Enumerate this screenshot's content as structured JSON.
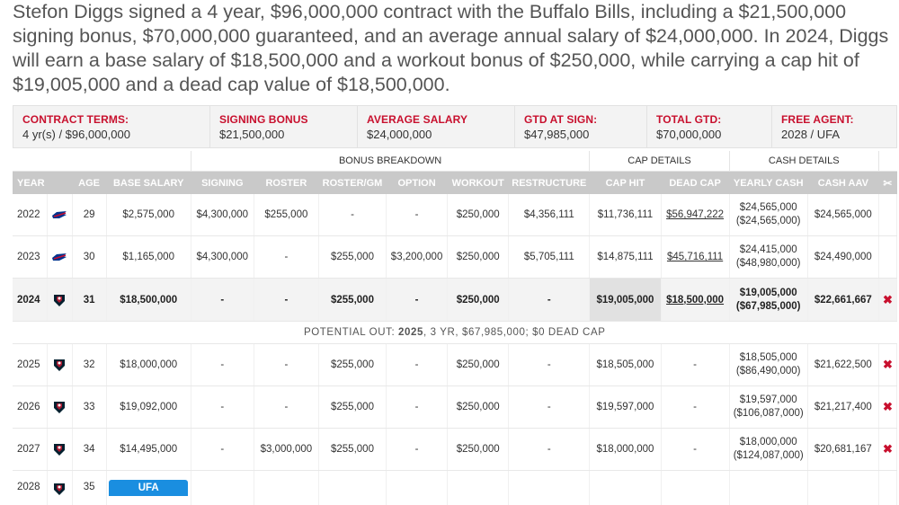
{
  "summary": "Stefon Diggs signed a 4 year, $96,000,000 contract with the Buffalo Bills, including a $21,500,000 signing bonus, $70,000,000 guaranteed, and an average annual salary of $24,000,000. In 2024, Diggs will earn a base salary of $18,500,000 and a workout bonus of $250,000, while carrying a cap hit of $19,005,000 and a dead cap value of $18,500,000.",
  "terms": [
    {
      "label": "CONTRACT TERMS:",
      "value": "4 yr(s) / $96,000,000"
    },
    {
      "label": "SIGNING BONUS",
      "value": "$21,500,000"
    },
    {
      "label": "AVERAGE SALARY",
      "value": "$24,000,000"
    },
    {
      "label": "GTD AT SIGN:",
      "value": "$47,985,000"
    },
    {
      "label": "TOTAL GTD:",
      "value": "$70,000,000"
    },
    {
      "label": "FREE AGENT:",
      "value": "2028 / UFA"
    }
  ],
  "groups": {
    "bonus": "BONUS BREAKDOWN",
    "cap": "CAP DETAILS",
    "cash": "CASH DETAILS"
  },
  "columns": [
    "YEAR",
    "AGE",
    "BASE SALARY",
    "SIGNING",
    "ROSTER",
    "ROSTER/GM",
    "OPTION",
    "WORKOUT",
    "RESTRUCTURE",
    "CAP HIT",
    "DEAD CAP",
    "YEARLY CASH",
    "CASH AAV"
  ],
  "rows": [
    {
      "year": "2022",
      "team": "bills",
      "age": "29",
      "base": "$2,575,000",
      "signing": "$4,300,000",
      "roster": "$255,000",
      "rostergm": "-",
      "option": "-",
      "workout": "$250,000",
      "restructure": "$4,356,111",
      "cap": "$11,736,111",
      "dead": "$56,947,222",
      "cash": "$24,565,000",
      "cash_cum": "($24,565,000)",
      "aav": "$24,565,000",
      "x": ""
    },
    {
      "year": "2023",
      "team": "bills",
      "age": "30",
      "base": "$1,165,000",
      "signing": "$4,300,000",
      "roster": "-",
      "rostergm": "$255,000",
      "option": "$3,200,000",
      "workout": "$250,000",
      "restructure": "$5,705,111",
      "cap": "$14,875,111",
      "dead": "$45,716,111",
      "cash": "$24,415,000",
      "cash_cum": "($48,980,000)",
      "aav": "$24,490,000",
      "x": ""
    },
    {
      "year": "2024",
      "team": "texans",
      "age": "31",
      "base": "$18,500,000",
      "signing": "-",
      "roster": "-",
      "rostergm": "$255,000",
      "option": "-",
      "workout": "$250,000",
      "restructure": "-",
      "cap": "$19,005,000",
      "dead": "$18,500,000",
      "cash": "$19,005,000",
      "cash_cum": "($67,985,000)",
      "aav": "$22,661,667",
      "x": "✖"
    }
  ],
  "potential": {
    "prefix": "POTENTIAL OUT: ",
    "year": "2025",
    "rest": ", 3 YR, $67,985,000; $0 DEAD CAP"
  },
  "rows2": [
    {
      "year": "2025",
      "team": "texans",
      "age": "32",
      "base": "$18,000,000",
      "signing": "-",
      "roster": "-",
      "rostergm": "$255,000",
      "option": "-",
      "workout": "$250,000",
      "restructure": "-",
      "cap": "$18,505,000",
      "dead": "-",
      "cash": "$18,505,000",
      "cash_cum": "($86,490,000)",
      "aav": "$21,622,500",
      "x": "✖"
    },
    {
      "year": "2026",
      "team": "texans",
      "age": "33",
      "base": "$19,092,000",
      "signing": "-",
      "roster": "-",
      "rostergm": "$255,000",
      "option": "-",
      "workout": "$250,000",
      "restructure": "-",
      "cap": "$19,597,000",
      "dead": "-",
      "cash": "$19,597,000",
      "cash_cum": "($106,087,000)",
      "aav": "$21,217,400",
      "x": "✖"
    },
    {
      "year": "2027",
      "team": "texans",
      "age": "34",
      "base": "$14,495,000",
      "signing": "-",
      "roster": "$3,000,000",
      "rostergm": "$255,000",
      "option": "-",
      "workout": "$250,000",
      "restructure": "-",
      "cap": "$18,000,000",
      "dead": "-",
      "cash": "$18,000,000",
      "cash_cum": "($124,087,000)",
      "aav": "$20,681,167",
      "x": "✖"
    }
  ],
  "last_row": {
    "year": "2028",
    "team": "texans",
    "age": "35",
    "status": "UFA"
  },
  "icons": {
    "scissors": "scissors-icon",
    "remove": "remove-x-icon",
    "bills": "bills-logo-icon",
    "texans": "texans-logo-icon"
  },
  "colors": {
    "accent": "#c8102e",
    "header_bg": "#c9c9c9",
    "ufa_badge": "#1a8ee0"
  }
}
